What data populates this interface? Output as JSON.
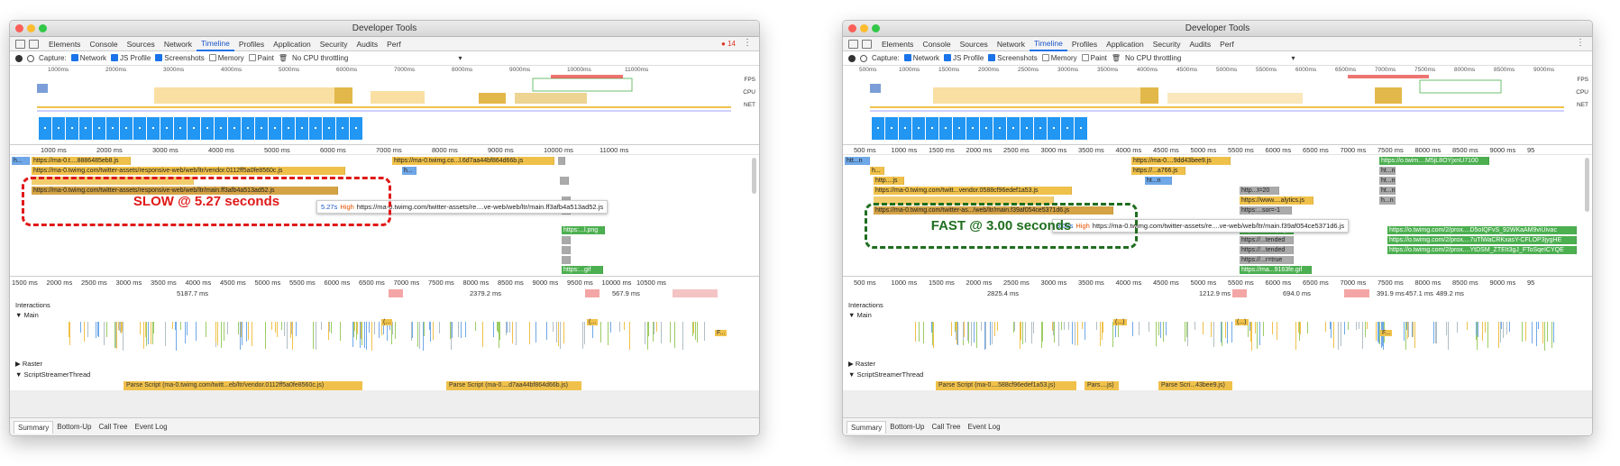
{
  "window_title": "Developer Tools",
  "tabs": [
    "Elements",
    "Console",
    "Sources",
    "Network",
    "Timeline",
    "Profiles",
    "Application",
    "Security",
    "Audits",
    "Perf"
  ],
  "active_tab": "Timeline",
  "error_count": "14",
  "toolbar": {
    "capture": "Capture:",
    "network": "Network",
    "js_profile": "JS Profile",
    "screenshots": "Screenshots",
    "memory": "Memory",
    "paint": "Paint",
    "throttling": "No CPU throttling"
  },
  "overview_labels": {
    "fps": "FPS",
    "cpu": "CPU",
    "net": "NET"
  },
  "track_labels": {
    "interactions": "Interactions",
    "main": "Main",
    "raster": "Raster",
    "script_streamer": "ScriptStreamerThread"
  },
  "bottom_tabs": [
    "Summary",
    "Bottom-Up",
    "Call Tree",
    "Event Log"
  ],
  "left": {
    "overview_ruler": [
      "1000ms",
      "2000ms",
      "3000ms",
      "4000ms",
      "5000ms",
      "6000ms",
      "7000ms",
      "8000ms",
      "9000ms",
      "10000ms",
      "11000ms"
    ],
    "flame_ruler": [
      "1000 ms",
      "2000 ms",
      "3000 ms",
      "4000 ms",
      "5000 ms",
      "6000 ms",
      "7000 ms",
      "8000 ms",
      "9000 ms",
      "10000 ms",
      "11000 ms"
    ],
    "track_ruler": [
      "1500 ms",
      "2000 ms",
      "2500 ms",
      "3000 ms",
      "3500 ms",
      "4000 ms",
      "4500 ms",
      "5000 ms",
      "5500 ms",
      "6000 ms",
      "6500 ms",
      "7000 ms",
      "7500 ms",
      "8000 ms",
      "8500 ms",
      "9000 ms",
      "9500 ms",
      "10000 ms",
      "10500 ms"
    ],
    "frames": [
      "5187.7 ms",
      "2379.2 ms",
      "567.9 ms"
    ],
    "requests": [
      "h...",
      "https://ma-0.t....8886485eb8.js",
      "https://ma-0.twimg.com/twitter-assets/responsive-web/web/ltr/vendor.0112ff5a0fe8560c.js",
      "https://ma-0.twimg.com/twitter-assets/responsive-web/web/ltr/main.ff3afb4a513ad52.js",
      "https://ma-0.twimg.co...l.6d7aa44bf864d66b.js",
      "h...",
      "https:...l.png",
      "https:...gif"
    ],
    "tooltip": {
      "duration": "5.27s",
      "priority": "High",
      "url": "https://ma-0.twimg.com/twitter-assets/re....ve-web/web/ltr/main.ff3afb4a513ad52.js"
    },
    "callout": "SLOW @ 5.27 seconds",
    "parse": [
      "Parse Script (ma-0.twimg.com/twitt...eb/ltr/vendor.0112ff5a0fe8560c.js)",
      "Parse Script (ma-0....d7aa44bf864d66b.js)"
    ],
    "main_labels": [
      "(...",
      "(...",
      "F..."
    ]
  },
  "right": {
    "overview_ruler": [
      "500ms",
      "1000ms",
      "1500ms",
      "2000ms",
      "2500ms",
      "3000ms",
      "3500ms",
      "4000ms",
      "4500ms",
      "5000ms",
      "5500ms",
      "6000ms",
      "6500ms",
      "7000ms",
      "7500ms",
      "8000ms",
      "8500ms",
      "9000ms"
    ],
    "flame_ruler": [
      "500 ms",
      "1000 ms",
      "1500 ms",
      "2000 ms",
      "2500 ms",
      "3000 ms",
      "3500 ms",
      "4000 ms",
      "4500 ms",
      "5000 ms",
      "5500 ms",
      "6000 ms",
      "6500 ms",
      "7000 ms",
      "7500 ms",
      "8000 ms",
      "8500 ms",
      "9000 ms",
      "95"
    ],
    "track_ruler": [
      "500 ms",
      "1000 ms",
      "1500 ms",
      "2000 ms",
      "2500 ms",
      "3000 ms",
      "3500 ms",
      "4000 ms",
      "4500 ms",
      "5000 ms",
      "5500 ms",
      "6000 ms",
      "6500 ms",
      "7000 ms",
      "7500 ms",
      "8000 ms",
      "8500 ms",
      "9000 ms",
      "95"
    ],
    "frames": [
      "2825.4 ms",
      "1212.9 ms",
      "694.0 ms",
      "391.9 ms",
      "457.1 ms",
      "489.2 ms"
    ],
    "requests": [
      "htt...n",
      "h...",
      "http....js",
      "https://ma-0.twimg.com/twitt...vendor.0588cf96edef1a53.js",
      "https://ma-0.twimg.com/twitter-as.../web/ltr/main.f39af054ce5371d6.js",
      "https://ma-0....9dd43bee9.js",
      "https://...a766.js",
      "ht...n",
      "http...t=20",
      "https://www....alytics.js",
      "https:...sor=-1",
      "https:/.....en.png",
      "https://...tended",
      "https://...tended",
      "https://...r=true",
      "https://ma...9163fe.gif",
      "https://o.twim....M5jL8OYjxnU7100",
      "https://o.twimg.com/2/prox....D5oIQFvS_92WKaAM9viUivac",
      "https://o.twimg.com/2/prox....7uTlWaCRKxasY-CFLOP3jygHE",
      "https://o.twimg.com/2/prox....YtDSM_ZTEIt3gJ_FToSqeICYQE"
    ],
    "tooltip": {
      "duration": "3.00s",
      "priority": "High",
      "url": "https://ma-0.twimg.com/twitter-assets/re....ve-web/web/ltr/main.f39af054ce5371d6.js"
    },
    "callout": "FAST @ 3.00 seconds",
    "parse": [
      "Parse Script (ma-0....588cf96edef1a53.js)",
      "Pars....js)",
      "Parse Scri...43bee9.js)"
    ],
    "main_labels": [
      "(...)",
      "(...)",
      "F..."
    ]
  },
  "colors": {
    "slow": "#e01919",
    "fast": "#1f6e1f",
    "active_tab": "#1a73e8"
  }
}
